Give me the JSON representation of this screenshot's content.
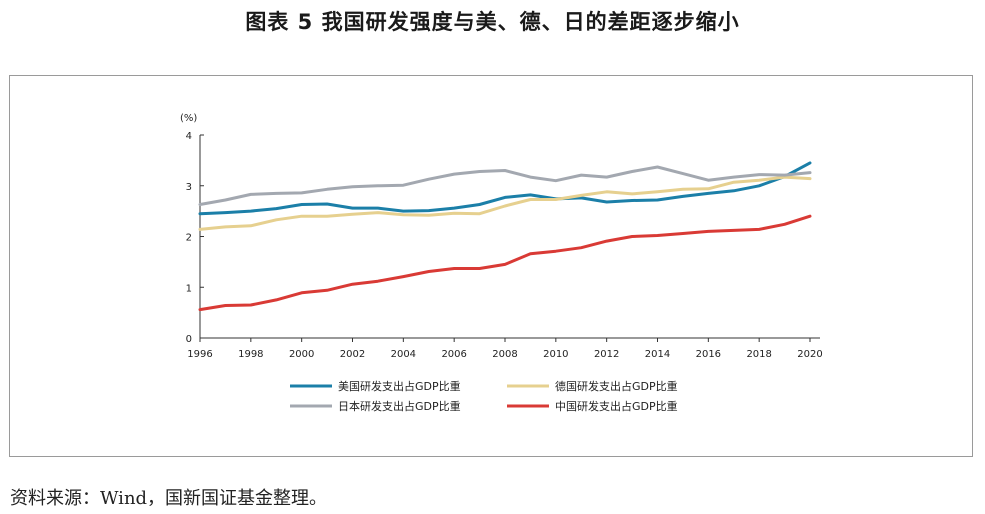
{
  "title": "图表 5  我国研发强度与美、德、日的差距逐步缩小",
  "source": "资料来源：Wind，国新国证基金整理。",
  "chart_data": {
    "type": "line",
    "unit_label": "(%)",
    "ylim": [
      0,
      4
    ],
    "yticks": [
      0,
      1,
      2,
      3,
      4
    ],
    "xlim": [
      1996,
      2020
    ],
    "xticks": [
      1996,
      1998,
      2000,
      2002,
      2004,
      2006,
      2008,
      2010,
      2012,
      2014,
      2016,
      2018,
      2020
    ],
    "x": [
      1996,
      1997,
      1998,
      1999,
      2000,
      2001,
      2002,
      2003,
      2004,
      2005,
      2006,
      2007,
      2008,
      2009,
      2010,
      2011,
      2012,
      2013,
      2014,
      2015,
      2016,
      2017,
      2018,
      2019,
      2020
    ],
    "grid": false,
    "legend_position": "bottom",
    "series": [
      {
        "name": "美国研发支出占GDP比重",
        "color": "#1b7fa8",
        "values": [
          2.45,
          2.47,
          2.5,
          2.55,
          2.63,
          2.64,
          2.56,
          2.56,
          2.5,
          2.51,
          2.56,
          2.63,
          2.77,
          2.82,
          2.74,
          2.76,
          2.68,
          2.71,
          2.72,
          2.79,
          2.85,
          2.9,
          3.0,
          3.18,
          3.45
        ]
      },
      {
        "name": "德国研发支出占GDP比重",
        "color": "#e6d08f",
        "values": [
          2.14,
          2.19,
          2.21,
          2.33,
          2.4,
          2.4,
          2.44,
          2.47,
          2.43,
          2.42,
          2.46,
          2.45,
          2.6,
          2.73,
          2.73,
          2.81,
          2.88,
          2.84,
          2.88,
          2.93,
          2.94,
          3.07,
          3.11,
          3.17,
          3.14
        ]
      },
      {
        "name": "日本研发支出占GDP比重",
        "color": "#a3a8b0",
        "values": [
          2.63,
          2.72,
          2.83,
          2.85,
          2.86,
          2.93,
          2.98,
          3.0,
          3.01,
          3.13,
          3.23,
          3.28,
          3.3,
          3.17,
          3.1,
          3.21,
          3.17,
          3.28,
          3.37,
          3.24,
          3.11,
          3.17,
          3.22,
          3.21,
          3.26
        ]
      },
      {
        "name": "中国研发支出占GDP比重",
        "color": "#d93a35",
        "values": [
          0.56,
          0.64,
          0.65,
          0.75,
          0.89,
          0.94,
          1.06,
          1.12,
          1.21,
          1.31,
          1.37,
          1.37,
          1.45,
          1.66,
          1.71,
          1.78,
          1.91,
          2.0,
          2.02,
          2.06,
          2.1,
          2.12,
          2.14,
          2.24,
          2.4
        ]
      }
    ]
  }
}
